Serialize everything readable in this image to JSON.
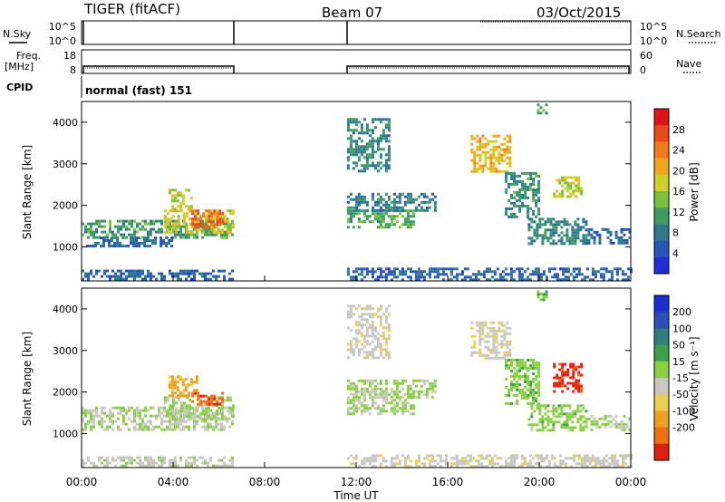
{
  "header": {
    "station": "TIGER (fitACF)",
    "beam": "Beam 07",
    "date": "03/Oct/2015"
  },
  "aux_panels": {
    "nsky_label": "N.Sky",
    "nsearch_label": "N.Search",
    "freq_label_1": "Freq.",
    "freq_label_2": "[MHz]",
    "nave_label": "Nave",
    "cpid_label": "CPID",
    "cpid_text": "normal (fast) 151",
    "noise_ticks": [
      "10^5",
      "10^0"
    ],
    "freq_ticks": [
      "18",
      "8"
    ],
    "nave_ticks": [
      "60",
      "0"
    ]
  },
  "chart_data": [
    {
      "type": "heatmap",
      "title": "",
      "ylabel": "Slant Range [km]",
      "xlabel": "",
      "x_range_hours": [
        0,
        24
      ],
      "ylim": [
        180,
        4500
      ],
      "y_ticks": [
        1000,
        2000,
        3000,
        4000
      ],
      "colorbar": {
        "label": "Power [dB]",
        "range": [
          0,
          32
        ],
        "ticks": [
          4,
          8,
          12,
          16,
          20,
          24,
          28
        ],
        "colors": [
          "#1f2fd6",
          "#2a55b8",
          "#2f7a8a",
          "#3e9b64",
          "#7ac23a",
          "#cdd02a",
          "#f2a81c",
          "#f07a1c",
          "#e84a1c",
          "#e01414"
        ]
      },
      "echo_regions": [
        {
          "t": [
            0.0,
            6.6
          ],
          "r": [
            1250,
            1650
          ],
          "v": 11
        },
        {
          "t": [
            0.2,
            4.0
          ],
          "r": [
            1000,
            1250
          ],
          "v": 7
        },
        {
          "t": [
            3.6,
            6.6
          ],
          "r": [
            1350,
            1900
          ],
          "v": 18
        },
        {
          "t": [
            4.8,
            6.2
          ],
          "r": [
            1500,
            1900
          ],
          "v": 26
        },
        {
          "t": [
            3.8,
            4.8
          ],
          "r": [
            1900,
            2400
          ],
          "v": 17
        },
        {
          "t": [
            0.0,
            6.6
          ],
          "r": [
            200,
            450
          ],
          "v": 6
        },
        {
          "t": [
            11.6,
            14.5
          ],
          "r": [
            1500,
            1900
          ],
          "v": 12
        },
        {
          "t": [
            11.6,
            15.5
          ],
          "r": [
            1900,
            2300
          ],
          "v": 8
        },
        {
          "t": [
            11.6,
            13.4
          ],
          "r": [
            2800,
            4100
          ],
          "v": 9
        },
        {
          "t": [
            17.0,
            18.7
          ],
          "r": [
            2800,
            3700
          ],
          "v": 20
        },
        {
          "t": [
            18.5,
            20.0
          ],
          "r": [
            1700,
            2800
          ],
          "v": 10
        },
        {
          "t": [
            19.5,
            22.0
          ],
          "r": [
            1100,
            1700
          ],
          "v": 9
        },
        {
          "t": [
            22.0,
            24.0
          ],
          "r": [
            1100,
            1450
          ],
          "v": 6
        },
        {
          "t": [
            20.6,
            21.8
          ],
          "r": [
            2200,
            2700
          ],
          "v": 17
        },
        {
          "t": [
            11.6,
            24.0
          ],
          "r": [
            200,
            500
          ],
          "v": 6
        },
        {
          "t": [
            19.9,
            20.3
          ],
          "r": [
            4200,
            4450
          ],
          "v": 12
        }
      ]
    },
    {
      "type": "heatmap",
      "title": "",
      "ylabel": "Slant Range [km]",
      "xlabel": "Time UT",
      "x_range_hours": [
        0,
        24
      ],
      "x_ticks": [
        "00:00",
        "04:00",
        "08:00",
        "12:00",
        "16:00",
        "20:00",
        "00:00"
      ],
      "ylim": [
        180,
        4500
      ],
      "y_ticks": [
        1000,
        2000,
        3000,
        4000
      ],
      "colorbar": {
        "label": "Velocity [m s⁻¹]",
        "range": [
          -250,
          250
        ],
        "tick_labels": [
          "200",
          "100",
          "50",
          "15",
          "-15",
          "-50",
          "-100",
          "-200"
        ],
        "colors": [
          "#1a2fd0",
          "#2a4fb6",
          "#2e7e7c",
          "#3aa04a",
          "#88d040",
          "#c8c8c0",
          "#e8d050",
          "#f0a020",
          "#f07010",
          "#e02010"
        ]
      },
      "echo_regions": [
        {
          "t": [
            0.0,
            6.6
          ],
          "r": [
            1100,
            1650
          ],
          "v": -5
        },
        {
          "t": [
            3.6,
            6.6
          ],
          "r": [
            1350,
            1900
          ],
          "v": 5
        },
        {
          "t": [
            4.8,
            6.2
          ],
          "r": [
            1700,
            2000
          ],
          "v": -180
        },
        {
          "t": [
            3.8,
            5.0
          ],
          "r": [
            1900,
            2400
          ],
          "v": -120
        },
        {
          "t": [
            0.0,
            6.6
          ],
          "r": [
            200,
            450
          ],
          "v": -20
        },
        {
          "t": [
            11.6,
            14.5
          ],
          "r": [
            1500,
            1900
          ],
          "v": 10
        },
        {
          "t": [
            11.6,
            15.5
          ],
          "r": [
            1900,
            2300
          ],
          "v": 5
        },
        {
          "t": [
            11.6,
            13.4
          ],
          "r": [
            2800,
            4100
          ],
          "v": -30
        },
        {
          "t": [
            17.0,
            18.7
          ],
          "r": [
            2800,
            3700
          ],
          "v": -40
        },
        {
          "t": [
            18.5,
            20.0
          ],
          "r": [
            1700,
            2800
          ],
          "v": 30
        },
        {
          "t": [
            19.5,
            22.0
          ],
          "r": [
            1100,
            1700
          ],
          "v": 25
        },
        {
          "t": [
            22.0,
            24.0
          ],
          "r": [
            1100,
            1450
          ],
          "v": 0
        },
        {
          "t": [
            20.6,
            21.8
          ],
          "r": [
            2000,
            2700
          ],
          "v": -220
        },
        {
          "t": [
            11.6,
            24.0
          ],
          "r": [
            200,
            500
          ],
          "v": -30
        },
        {
          "t": [
            19.9,
            20.3
          ],
          "r": [
            4200,
            4450
          ],
          "v": 40
        }
      ]
    }
  ]
}
